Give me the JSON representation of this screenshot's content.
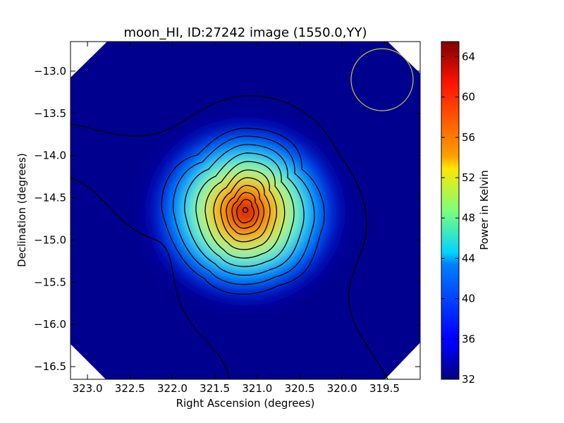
{
  "chart_data": {
    "type": "heatmap",
    "title": "moon_HI, ID:27242 image (1550.0,YY)",
    "xlabel": "Right Ascension (degrees)",
    "ylabel": "Declination (degrees)",
    "xlim": [
      323.2,
      319.08
    ],
    "ylim": [
      -16.65,
      -12.65
    ],
    "x_ticks": [
      323.0,
      322.5,
      322.0,
      321.5,
      321.0,
      320.5,
      320.0,
      319.5
    ],
    "x_tick_labels": [
      "323.0",
      "322.5",
      "322.0",
      "321.5",
      "321.0",
      "320.5",
      "320.0",
      "319.5"
    ],
    "y_ticks": [
      -13.0,
      -13.5,
      -14.0,
      -14.5,
      -15.0,
      -15.5,
      -16.0,
      -16.5
    ],
    "y_tick_labels": [
      "−13.0",
      "−13.5",
      "−14.0",
      "−14.5",
      "−15.0",
      "−15.5",
      "−16.0",
      "−16.5"
    ],
    "colorbar": {
      "label": "Power in Kelvin",
      "range": [
        32,
        65.5
      ],
      "ticks": [
        32,
        36,
        40,
        44,
        48,
        52,
        56,
        60,
        64
      ],
      "tick_labels": [
        "32",
        "36",
        "40",
        "44",
        "48",
        "52",
        "56",
        "60",
        "64"
      ],
      "colormap": "jet"
    },
    "source_peak": {
      "ra": 321.12,
      "dec": -14.65,
      "value": 65
    },
    "beam_circle": {
      "ra": 319.53,
      "dec": -13.08,
      "radius_deg": 0.37,
      "color": "#c8c83c"
    },
    "background_level": 33,
    "grid": false
  }
}
